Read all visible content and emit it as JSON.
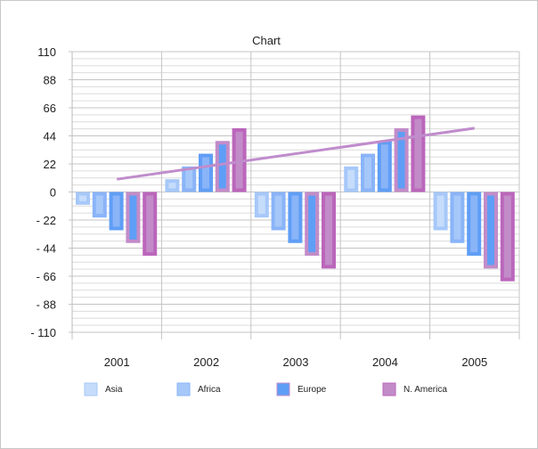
{
  "chart_data": {
    "type": "bar",
    "title": "Chart",
    "categories": [
      "2001",
      "2002",
      "2003",
      "2004",
      "2005"
    ],
    "ylim": [
      -110,
      110
    ],
    "yticks": [
      110,
      88,
      66,
      44,
      22,
      0,
      -22,
      -44,
      -66,
      -88,
      -110
    ],
    "ytick_labels": [
      "110",
      "88",
      "66",
      "44",
      "22",
      "0",
      "- 22",
      "- 44",
      "- 66",
      "- 88",
      "- 110"
    ],
    "grid": true,
    "legend_position": "bottom",
    "series": [
      {
        "name": "Asia",
        "values": [
          -10,
          10,
          -20,
          20,
          -30
        ],
        "fill": "#c6dcfb",
        "border": "#a6c8f9"
      },
      {
        "name": "Africa",
        "values": [
          -20,
          20,
          -30,
          30,
          -40
        ],
        "fill": "#a6c8f9",
        "border": "#8ab4f8"
      },
      {
        "values": [
          -30,
          30,
          -40,
          40,
          -50
        ],
        "fill": "#8ab4f8",
        "border": "#5f9ef6"
      },
      {
        "name": "Europe",
        "values": [
          -40,
          40,
          -50,
          50,
          -60
        ],
        "fill": "#5f9ef6",
        "border": "#c28cc8"
      },
      {
        "name": "N. America",
        "values": [
          -50,
          50,
          -60,
          60,
          -70
        ],
        "fill": "#c28cc8",
        "border": "#bb66bb"
      }
    ],
    "trendline": {
      "values": [
        10,
        50
      ],
      "color": "#c08ccc"
    }
  }
}
